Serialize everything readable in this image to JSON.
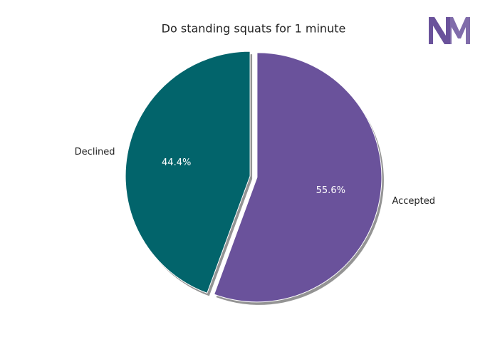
{
  "chart_data": {
    "type": "pie",
    "title": "Do standing squats for 1 minute",
    "categories": [
      "Declined",
      "Accepted"
    ],
    "values": [
      44.4,
      55.6
    ],
    "value_labels": [
      "44.4%",
      "55.6%"
    ],
    "colors": [
      "#02646b",
      "#6a529b"
    ],
    "start_angle": 90,
    "shadow": true
  }
}
